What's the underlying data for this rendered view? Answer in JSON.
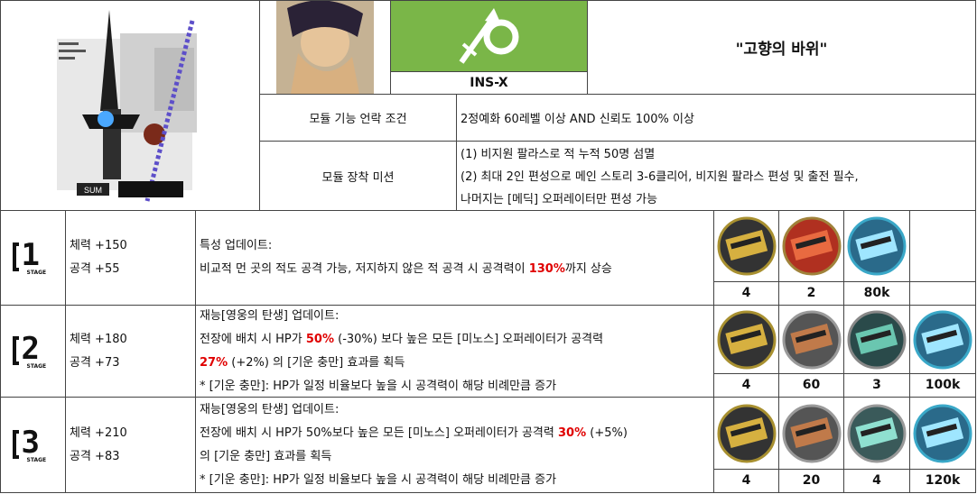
{
  "header": {
    "title": "\"고향의 바위\"",
    "module_code": "INS-X",
    "unlock_label": "모듈 기능 언락 조건",
    "unlock_value": "2정예화 60레벨 이상 AND 신뢰도 100% 이상",
    "mission_label": "모듈 장착 미션",
    "mission_lines": [
      "(1) 비지원 팔라스로 적 누적 50명 섬멸",
      "(2) 최대 2인 편성으로 메인 스토리 3-6클리어, 비지원 팔라스 편성 및 출전 필수,",
      "나머지는 [메딕] 오퍼레이터만 편성 가능"
    ],
    "badge_text": "SUM"
  },
  "stages": [
    {
      "stage_num": "1",
      "stage_word": "STAGE",
      "hp": "체력 +150",
      "atk": "공격 +55",
      "desc": {
        "l1": "특성 업데이트:",
        "l2a": "비교적 먼 곳의 적도 공격 가능, 저지하지 않은 적 공격 시 공격력이 ",
        "l2b": "130%",
        "l2c": "까지 상승"
      },
      "mats": [
        {
          "icon": "module-data-block-icon",
          "count": "4"
        },
        {
          "icon": "mission-material-icon",
          "count": "2"
        },
        {
          "icon": "lmd-ticket-icon",
          "count": "80k"
        },
        {
          "icon": "",
          "count": ""
        }
      ]
    },
    {
      "stage_num": "2",
      "stage_word": "STAGE",
      "hp": "체력 +180",
      "atk": "공격 +73",
      "desc": {
        "l1": "재능[영웅의 탄생] 업데이트:",
        "l2a": "전장에 배치 시 HP가 ",
        "l2b": "50%",
        "l2c": " (-30%) 보다 높은 모든 [미노스] 오퍼레이터가 공격력",
        "l3a": "27%",
        "l3b": " (+2%) 의 [기운 충만] 효과를 획득",
        "l4": "* [기운 충만]: HP가 일정 비율보다 높을 시 공격력이 해당 비례만큼 증가"
      },
      "mats": [
        {
          "icon": "module-data-block-icon",
          "count": "4"
        },
        {
          "icon": "data-supplement-stick-icon",
          "count": "60"
        },
        {
          "icon": "crystal-circuit-icon",
          "count": "3"
        },
        {
          "icon": "lmd-ticket-icon",
          "count": "100k"
        }
      ]
    },
    {
      "stage_num": "3",
      "stage_word": "STAGE",
      "hp": "체력 +210",
      "atk": "공격 +83",
      "desc": {
        "l1": "재능[영웅의 탄생] 업데이트:",
        "l2a": "전장에 배치 시 HP가 50%보다 높은 모든 [미노스] 오퍼레이터가 공격력 ",
        "l2b": "30%",
        "l2c": " (+5%)",
        "l3a": "",
        "l3b": "의 [기운 충만] 효과를 획득",
        "l4": "* [기운 충만]: HP가 일정 비율보다 높을 시 공격력이 해당 비례만큼 증가"
      },
      "mats": [
        {
          "icon": "module-data-block-icon",
          "count": "4"
        },
        {
          "icon": "data-supplement-instrument-icon",
          "count": "20"
        },
        {
          "icon": "crystal-electronic-unit-icon",
          "count": "4"
        },
        {
          "icon": "lmd-ticket-icon",
          "count": "120k"
        }
      ]
    }
  ],
  "colors": {
    "module_green": "#7ab648",
    "highlight_red": "#e00000"
  }
}
